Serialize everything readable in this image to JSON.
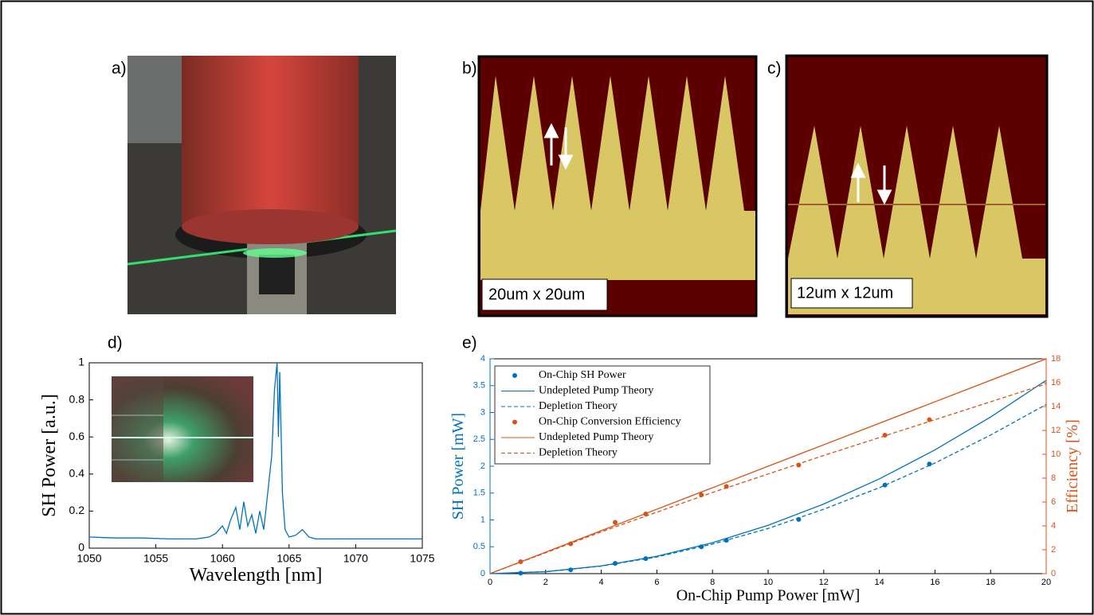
{
  "labels": [
    "a)",
    "b)",
    "c)",
    "d)",
    "e)"
  ],
  "captions": [
    "20um x 20um",
    "12um x 12um"
  ],
  "chart_data": [
    {
      "type": "line",
      "xlabel": "Wavelength [nm]",
      "ylabel": "SH Power [a.u.]",
      "x": [
        1050,
        1052,
        1054,
        1056,
        1058,
        1059,
        1059.5,
        1060,
        1060.3,
        1060.6,
        1061,
        1061.3,
        1061.6,
        1061.9,
        1062.2,
        1062.5,
        1062.8,
        1063.1,
        1063.4,
        1063.7,
        1063.9,
        1064.1,
        1064.2,
        1064.3,
        1064.5,
        1064.7,
        1065,
        1065.5,
        1066,
        1066.5,
        1067,
        1069,
        1071,
        1073,
        1075
      ],
      "values": [
        0.06,
        0.055,
        0.055,
        0.05,
        0.05,
        0.06,
        0.08,
        0.12,
        0.08,
        0.15,
        0.22,
        0.1,
        0.25,
        0.12,
        0.18,
        0.08,
        0.2,
        0.1,
        0.3,
        0.5,
        0.85,
        1.0,
        0.6,
        0.95,
        0.3,
        0.1,
        0.06,
        0.07,
        0.1,
        0.06,
        0.05,
        0.05,
        0.05,
        0.05,
        0.05
      ],
      "color": "#0072bd",
      "xlim": [
        1050,
        1075
      ],
      "xticks": [
        1050,
        1055,
        1060,
        1065,
        1070,
        1075
      ],
      "ylim": [
        0,
        1
      ],
      "yticks": [
        0,
        0.2,
        0.4,
        0.6,
        0.8,
        1
      ]
    },
    {
      "type": "line",
      "xlabel": "On-Chip Pump Power [mW]",
      "ylabel": "SH Power [mW]",
      "y2label": "Efficiency [%]",
      "ycolor": "#0072bd",
      "y2color": "#d95319",
      "legend": "upper-left",
      "xlim": [
        0,
        20
      ],
      "xticks": [
        0,
        2,
        4,
        6,
        8,
        10,
        12,
        14,
        16,
        18,
        20
      ],
      "ylim": [
        0,
        4
      ],
      "yticks": [
        0,
        0.5,
        1,
        1.5,
        2,
        2.5,
        3,
        3.5,
        4
      ],
      "y2lim": [
        0,
        18
      ],
      "y2ticks": [
        0,
        2,
        4,
        6,
        8,
        10,
        12,
        14,
        16,
        18
      ],
      "series": [
        {
          "name": "On-Chip SH Power",
          "color": "#0072bd",
          "style": "markers",
          "x": [
            1.1,
            2.9,
            4.5,
            5.6,
            7.6,
            8.5,
            11.1,
            14.2,
            15.8
          ],
          "values": [
            0.01,
            0.07,
            0.19,
            0.28,
            0.5,
            0.62,
            1.01,
            1.65,
            2.04
          ]
        },
        {
          "name": "Undepleted Pump Theory",
          "color": "#0072bd",
          "style": "solid",
          "x": [
            0,
            2,
            4,
            6,
            8,
            10,
            12,
            14,
            16,
            18,
            20
          ],
          "values": [
            0,
            0.036,
            0.144,
            0.324,
            0.576,
            0.9,
            1.296,
            1.764,
            2.304,
            2.916,
            3.6
          ]
        },
        {
          "name": "Depletion Theory",
          "color": "#0072bd",
          "style": "dashed",
          "x": [
            0,
            2,
            4,
            6,
            8,
            10,
            12,
            14,
            16,
            18,
            20
          ],
          "values": [
            0,
            0.035,
            0.14,
            0.31,
            0.55,
            0.84,
            1.2,
            1.6,
            2.06,
            2.58,
            3.15
          ]
        },
        {
          "name": "On-Chip Conversion Efficiency",
          "color": "#d95319",
          "style": "markers",
          "axis": "y2",
          "x": [
            1.1,
            2.9,
            4.5,
            5.6,
            7.6,
            8.5,
            11.1,
            14.2,
            15.8
          ],
          "values": [
            1.0,
            2.5,
            4.3,
            5.0,
            6.6,
            7.3,
            9.1,
            11.6,
            12.9
          ]
        },
        {
          "name": "Undepleted Pump Theory",
          "color": "#d95319",
          "style": "solid",
          "axis": "y2",
          "x": [
            0,
            20
          ],
          "values": [
            0,
            18
          ]
        },
        {
          "name": "Depletion Theory",
          "color": "#d95319",
          "style": "dashed",
          "axis": "y2",
          "x": [
            0,
            4,
            8,
            12,
            16,
            20
          ],
          "values": [
            0,
            3.5,
            6.8,
            9.9,
            12.9,
            15.9
          ]
        }
      ]
    }
  ]
}
